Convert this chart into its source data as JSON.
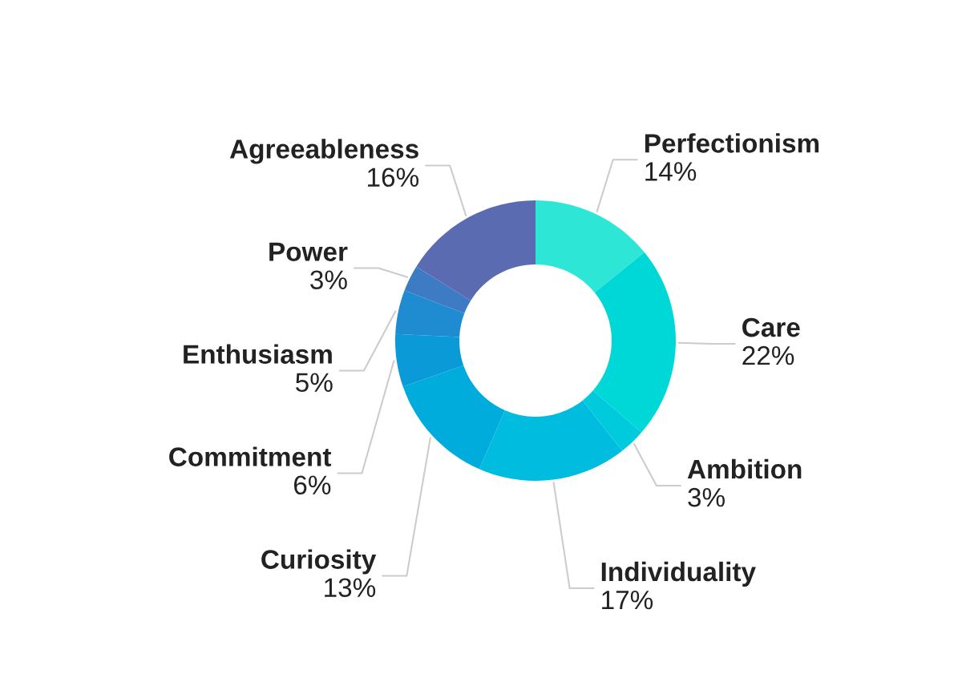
{
  "chart_data": {
    "type": "donut",
    "categories": [
      "Perfectionism",
      "Care",
      "Ambition",
      "Individuality",
      "Curiosity",
      "Commitment",
      "Enthusiasm",
      "Power",
      "Agreeableness"
    ],
    "values": [
      14,
      22,
      3,
      17,
      13,
      6,
      5,
      3,
      16
    ],
    "value_labels": [
      "14%",
      "22%",
      "3%",
      "17%",
      "13%",
      "6%",
      "5%",
      "3%",
      "16%"
    ],
    "colors": [
      "#2ee6d6",
      "#00d8d8",
      "#00cbdd",
      "#00bde0",
      "#00acdc",
      "#0a9ad8",
      "#1f8bd0",
      "#3d7cc4",
      "#5b6bb2"
    ],
    "legend": false
  }
}
